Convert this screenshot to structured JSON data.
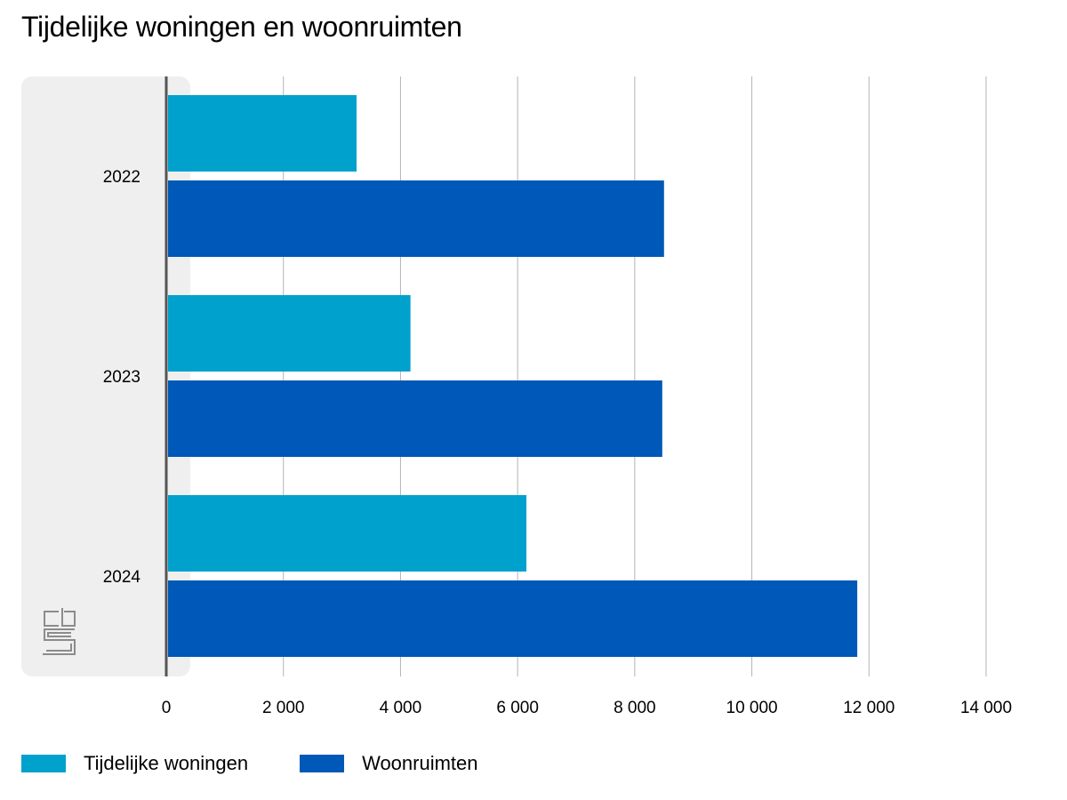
{
  "chart_data": {
    "type": "bar",
    "orientation": "horizontal",
    "title": "Tijdelijke woningen en woonruimten",
    "xlabel": "",
    "ylabel": "",
    "categories": [
      "2022",
      "2023",
      "2024"
    ],
    "series": [
      {
        "name": "Tijdelijke woningen",
        "color": "#00a1cd",
        "values": [
          3250,
          4170,
          6150
        ]
      },
      {
        "name": "Woonruimten",
        "color": "#0058b8",
        "values": [
          8500,
          8470,
          11800
        ]
      }
    ],
    "xlim": [
      0,
      14000
    ],
    "xticks": [
      0,
      2000,
      4000,
      6000,
      8000,
      10000,
      12000,
      14000
    ],
    "xtick_labels": [
      "0",
      "2 000",
      "4 000",
      "6 000",
      "8 000",
      "10 000",
      "12 000",
      "14 000"
    ],
    "grid": "vertical",
    "legend_position": "bottom-left",
    "logo": "cbs"
  },
  "colors": {
    "panel_background": "#efefef",
    "gridline": "#b4b4b4",
    "axis": "#555555",
    "logo": "#8c8c8c"
  }
}
